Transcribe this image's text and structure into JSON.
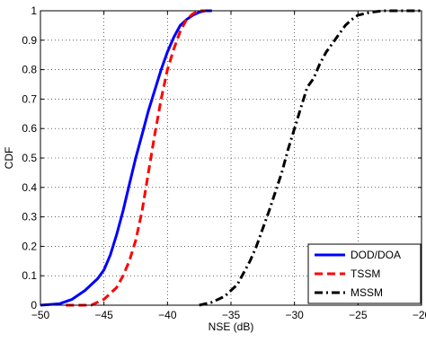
{
  "chart_data": {
    "type": "line",
    "xlabel": "NSE (dB)",
    "ylabel": "CDF",
    "xlim": [
      -50,
      -20
    ],
    "ylim": [
      0,
      1
    ],
    "xticks": [
      -50,
      -45,
      -40,
      -35,
      -30,
      -25,
      -20
    ],
    "yticks": [
      0,
      0.1,
      0.2,
      0.3,
      0.4,
      0.5,
      0.6,
      0.7,
      0.8,
      0.9,
      1
    ],
    "xtick_labels": [
      "−50",
      "−45",
      "−40",
      "−35",
      "−30",
      "−25",
      "−20"
    ],
    "ytick_labels": [
      "0",
      "0.1",
      "0.2",
      "0.3",
      "0.4",
      "0.5",
      "0.6",
      "0.7",
      "0.8",
      "0.9",
      "1"
    ],
    "grid": true,
    "legend_position": "bottom-right",
    "series": [
      {
        "name": "DOD/DOA",
        "color": "#0000ff",
        "style": "solid",
        "x": [
          -50,
          -48.5,
          -47.5,
          -46.5,
          -45.5,
          -45,
          -44.5,
          -44,
          -43.5,
          -43,
          -42.5,
          -42,
          -41.5,
          -41,
          -40.5,
          -40,
          -39.5,
          -39,
          -38.5,
          -38,
          -37.5,
          -37,
          -36.5
        ],
        "y": [
          0,
          0.005,
          0.02,
          0.05,
          0.09,
          0.12,
          0.17,
          0.24,
          0.32,
          0.41,
          0.5,
          0.58,
          0.66,
          0.73,
          0.8,
          0.86,
          0.91,
          0.95,
          0.97,
          0.985,
          0.995,
          1,
          1
        ]
      },
      {
        "name": "TSSM",
        "color": "#ff0000",
        "style": "dashed",
        "x": [
          -48,
          -46,
          -45,
          -44,
          -43.5,
          -43,
          -42.5,
          -42,
          -41.5,
          -41,
          -40.5,
          -40,
          -39.5,
          -39,
          -38.5,
          -38,
          -37.5,
          -37
        ],
        "y": [
          0,
          0,
          0.02,
          0.06,
          0.1,
          0.15,
          0.22,
          0.32,
          0.45,
          0.58,
          0.7,
          0.8,
          0.87,
          0.93,
          0.97,
          0.99,
          1,
          1
        ]
      },
      {
        "name": "MSSM",
        "color": "#000000",
        "style": "dashdot",
        "x": [
          -37.5,
          -36.5,
          -35.5,
          -34.5,
          -33.5,
          -33,
          -32,
          -31,
          -30.5,
          -30,
          -29.5,
          -29,
          -28.5,
          -28,
          -27.5,
          -27,
          -26.5,
          -26,
          -25.5,
          -25,
          -24,
          -23,
          -22,
          -21,
          -20
        ],
        "y": [
          0,
          0.01,
          0.03,
          0.07,
          0.15,
          0.2,
          0.32,
          0.45,
          0.53,
          0.6,
          0.67,
          0.74,
          0.77,
          0.82,
          0.86,
          0.89,
          0.92,
          0.95,
          0.97,
          0.985,
          0.995,
          1,
          1,
          1,
          1
        ]
      }
    ]
  }
}
